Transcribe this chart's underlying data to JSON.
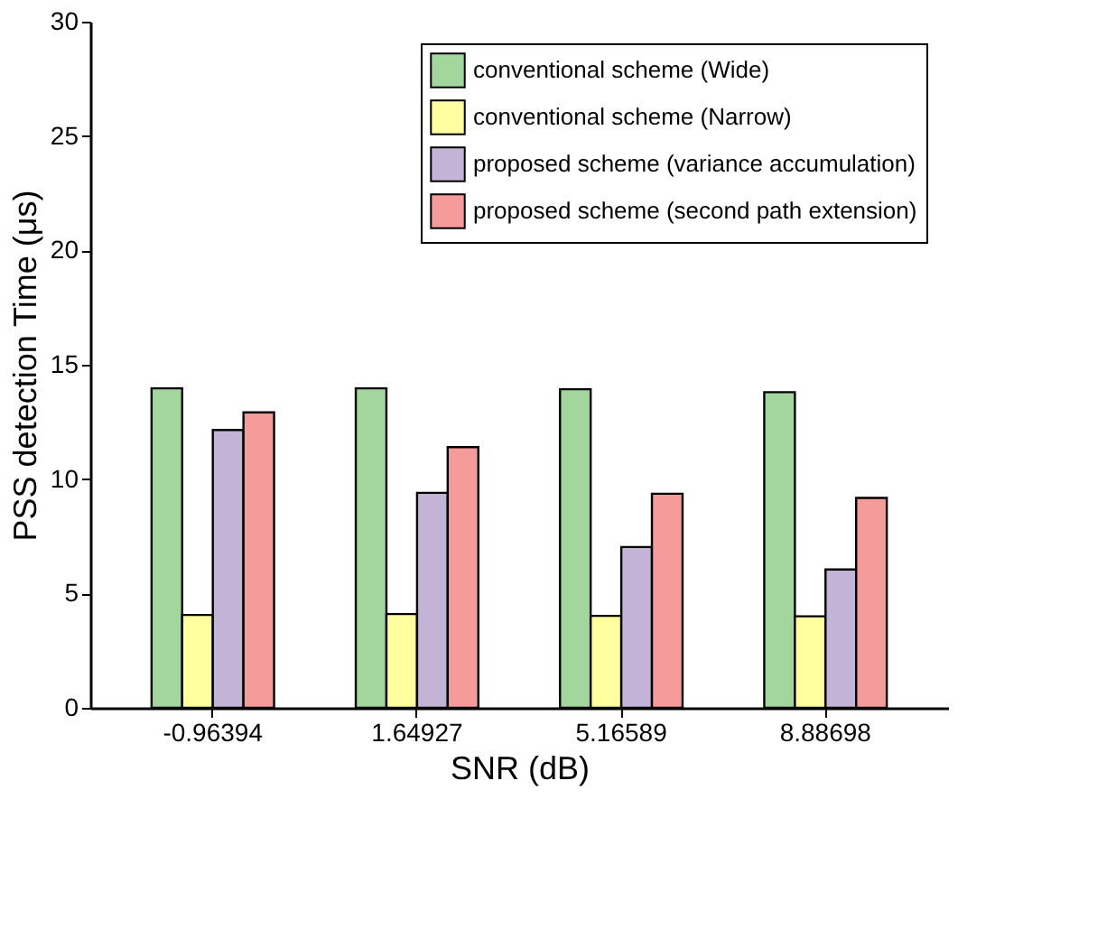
{
  "chart_data": {
    "type": "bar",
    "xlabel": "SNR (dB)",
    "ylabel": "PSS detection Time (μs)",
    "categories": [
      "-0.96394",
      "1.64927",
      "5.16589",
      "8.88698"
    ],
    "series": [
      {
        "name": "conventional scheme (Wide)",
        "color": "#a2d69c",
        "values": [
          13.97,
          13.97,
          13.93,
          13.8
        ]
      },
      {
        "name": "conventional scheme (Narrow)",
        "color": "#ffff9f",
        "values": [
          4.06,
          4.1,
          4.02,
          4.0
        ]
      },
      {
        "name": "proposed scheme (variance accumulation)",
        "color": "#c3b3d7",
        "values": [
          12.15,
          9.4,
          7.03,
          6.05
        ]
      },
      {
        "name": "proposed scheme (second path extension)",
        "color": "#f59b9a",
        "values": [
          12.92,
          11.4,
          9.36,
          9.18
        ]
      }
    ],
    "ylim": [
      0,
      30
    ],
    "yticks": [
      0,
      5,
      10,
      15,
      20,
      25,
      30
    ],
    "grid": false,
    "legend": "top right"
  }
}
